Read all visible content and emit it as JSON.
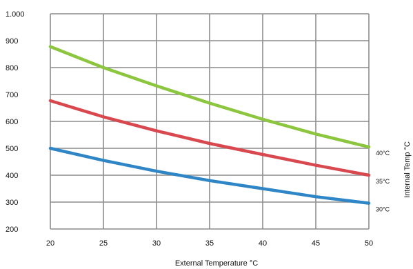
{
  "chart_data": {
    "type": "line",
    "title": "",
    "xlabel": "External Temperature °C",
    "ylabel": "Internal Temp °C",
    "x_ticks": [
      "20",
      "25",
      "30",
      "35",
      "40",
      "45",
      "50"
    ],
    "y_ticks": [
      "200",
      "300",
      "400",
      "500",
      "600",
      "700",
      "800",
      "900",
      "1.000"
    ],
    "xlim": [
      20,
      50
    ],
    "ylim": [
      200,
      1000
    ],
    "grid": true,
    "legend": "none",
    "series": [
      {
        "name": "40°C",
        "color": "#8cc63f",
        "x": [
          20,
          25,
          30,
          35,
          40,
          45,
          50
        ],
        "y": [
          878,
          800,
          732,
          668,
          608,
          553,
          505
        ]
      },
      {
        "name": "35°C",
        "color": "#d9484f",
        "x": [
          20,
          25,
          30,
          35,
          40,
          45,
          50
        ],
        "y": [
          677,
          617,
          565,
          518,
          477,
          437,
          400
        ]
      },
      {
        "name": "30°C",
        "color": "#2f86c6",
        "x": [
          20,
          25,
          30,
          35,
          40,
          45,
          50
        ],
        "y": [
          500,
          455,
          415,
          380,
          350,
          320,
          296
        ]
      }
    ]
  }
}
